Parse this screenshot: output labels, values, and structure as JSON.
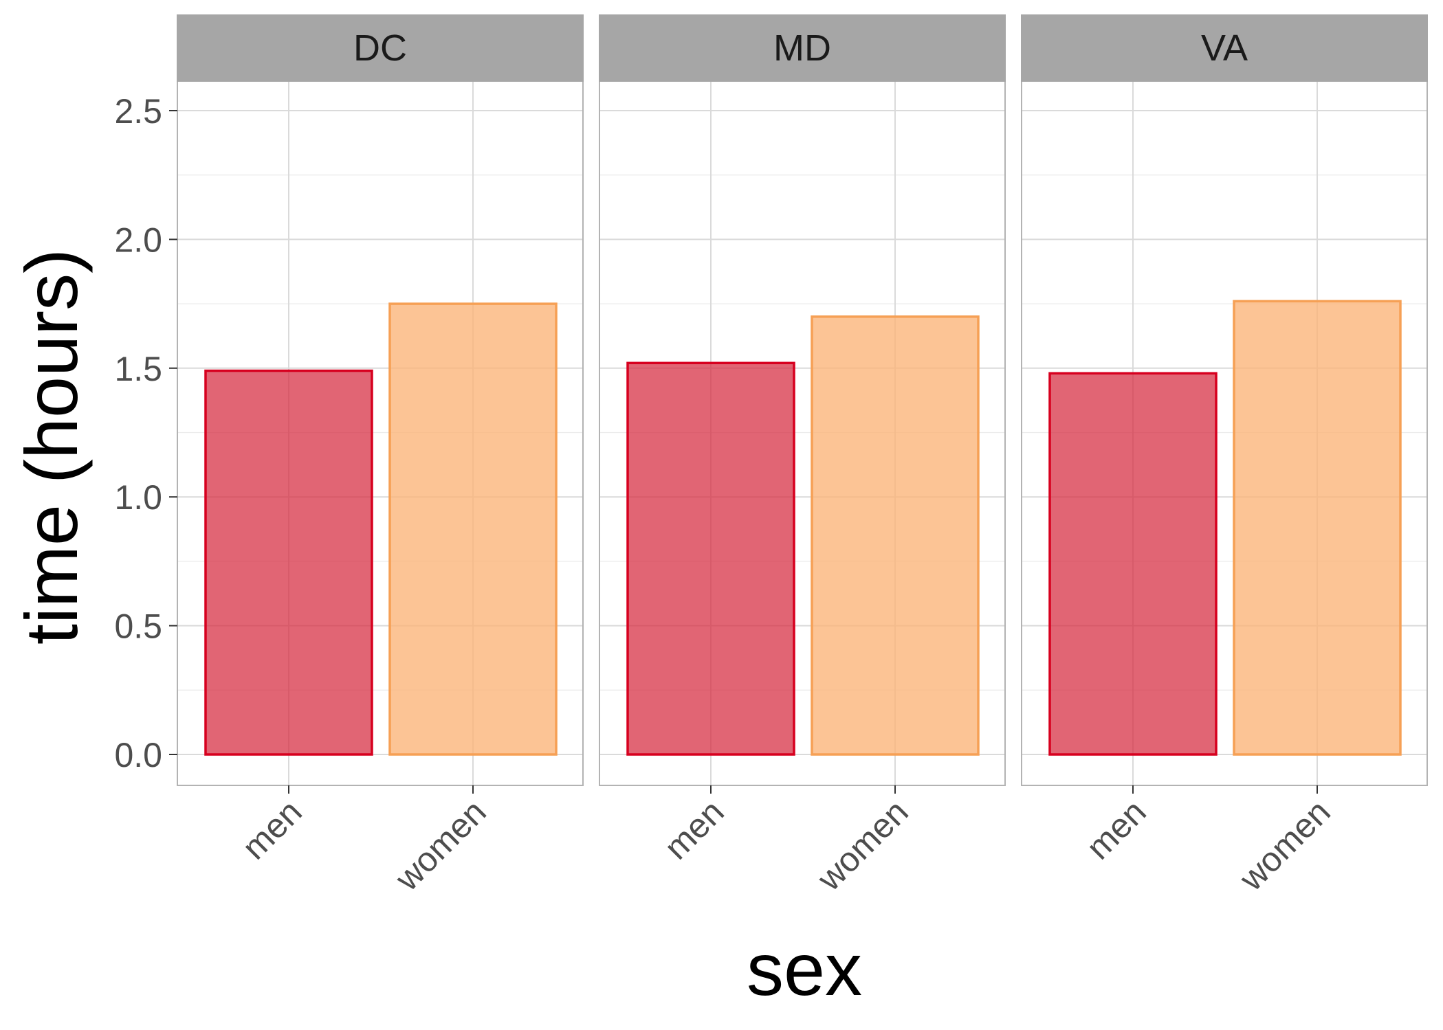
{
  "chart_data": {
    "type": "bar",
    "facets": [
      "DC",
      "MD",
      "VA"
    ],
    "categories": [
      "men",
      "women"
    ],
    "series": [
      {
        "facet": "DC",
        "values": [
          1.49,
          1.75
        ]
      },
      {
        "facet": "MD",
        "values": [
          1.52,
          1.7
        ]
      },
      {
        "facet": "VA",
        "values": [
          1.48,
          1.76
        ]
      }
    ],
    "xlabel": "sex",
    "ylabel": "time (hours)",
    "ylim": [
      -0.12,
      2.62
    ],
    "yticks": [
      "0.0",
      "0.5",
      "1.0",
      "1.5",
      "2.0",
      "2.5"
    ],
    "ytick_values": [
      0,
      0.5,
      1,
      1.5,
      2,
      2.5
    ],
    "colors": {
      "men_fill": "#d6293f",
      "men_stroke": "#d7001f",
      "women_fill": "#fbb477",
      "women_stroke": "#f6a055",
      "strip_bg": "#a6a6a6",
      "grid": "#dadada",
      "panel_border": "#b3b3b3"
    },
    "grid": true,
    "legend": "none"
  }
}
